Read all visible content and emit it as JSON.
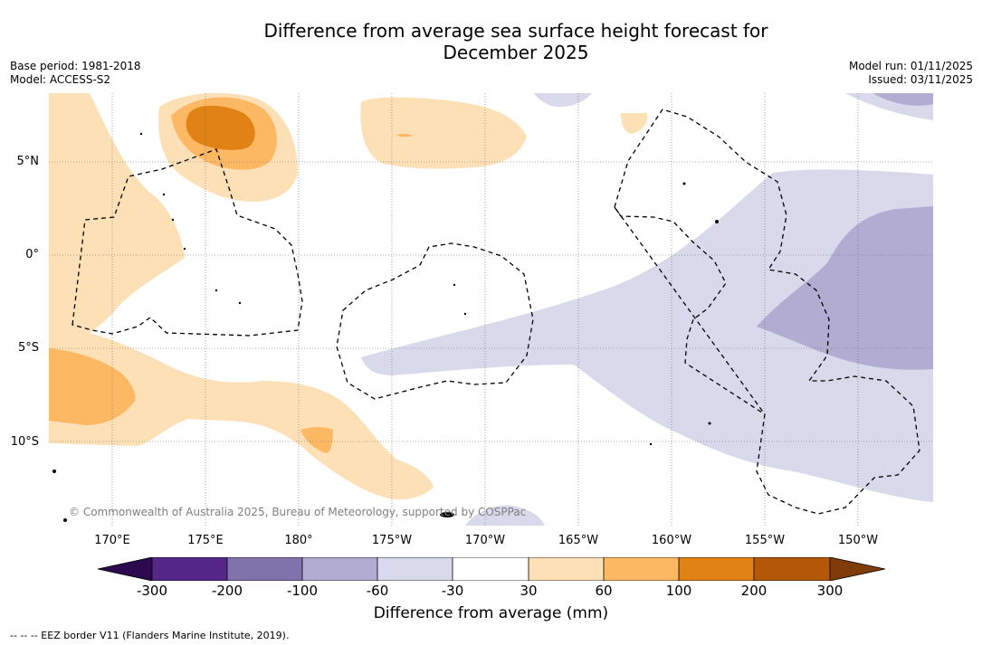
{
  "header": {
    "title_line1": "Difference from average sea surface height forecast for",
    "title_line2": "December 2025",
    "base_period": "Base period: 1981-2018",
    "model": "Model: ACCESS-S2",
    "model_run": "Model run: 01/11/2025",
    "issued": "Issued: 03/11/2025"
  },
  "map": {
    "copyright": "© Commonwealth of Australia 2025, Bureau of Meteorology, supported by COSPPac",
    "lat_labels": [
      "5°N",
      "0°",
      "5°S",
      "10°S"
    ],
    "lon_labels": [
      "170°E",
      "175°E",
      "180°",
      "175°W",
      "170°W",
      "165°W",
      "160°W",
      "155°W",
      "150°W"
    ]
  },
  "colorbar": {
    "ticks": [
      "-300",
      "-200",
      "-100",
      "-60",
      "-30",
      "30",
      "60",
      "100",
      "200",
      "300"
    ],
    "colors": {
      "below": "#2d0a4e",
      "c1": "#542788",
      "c2": "#8073ac",
      "c3": "#b2abd2",
      "c4": "#d8daeb",
      "c5": "#ffffff",
      "c6": "#fee0b6",
      "c7": "#fdb863",
      "c8": "#e08214",
      "c9": "#b35806",
      "above": "#7f3b08"
    },
    "label": "Difference from average (mm)"
  },
  "legend": {
    "eez_note": "--  --  -- EEZ border V11 (Flanders Marine Institute, 2019)."
  }
}
